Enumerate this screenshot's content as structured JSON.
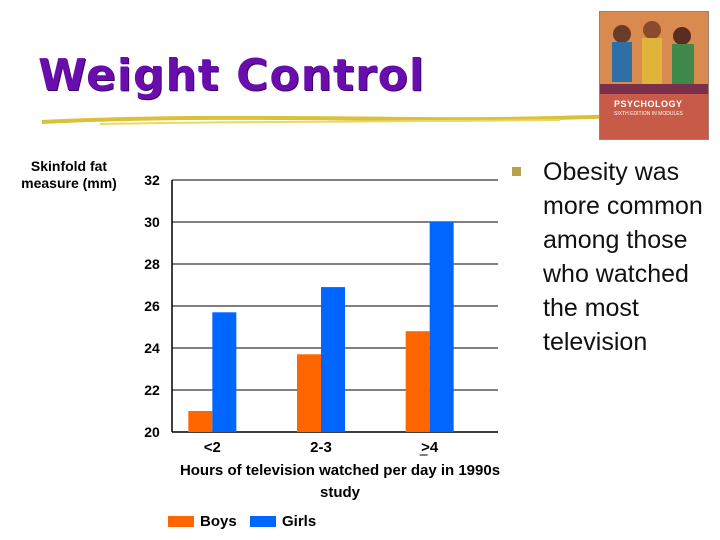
{
  "slide": {
    "title": "Weight Control",
    "bullet": "Obesity was more common among those who watched the most television",
    "book": {
      "line1": "PSYCHOLOGY",
      "line2": "SIXTH EDITION IN MODULES"
    }
  },
  "colors": {
    "title": "#6a0dad",
    "boys": "#ff6600",
    "girls": "#0066ff",
    "bullet": "#b7a24a"
  },
  "chart_data": {
    "type": "bar",
    "ylabel": "Skinfold fat measure (mm)",
    "xlabel": "Hours of television watched per day in 1990s study",
    "categories": [
      "<2",
      "2-3",
      ">4"
    ],
    "series": [
      {
        "name": "Boys",
        "values": [
          21.0,
          23.7,
          24.8
        ],
        "color": "#ff6600"
      },
      {
        "name": "Girls",
        "values": [
          25.7,
          26.9,
          30.0
        ],
        "color": "#0066ff"
      }
    ],
    "ylim": [
      20,
      32
    ],
    "yticks": [
      20,
      22,
      24,
      26,
      28,
      30,
      32
    ],
    "grid": true,
    "legend": "bottom"
  }
}
